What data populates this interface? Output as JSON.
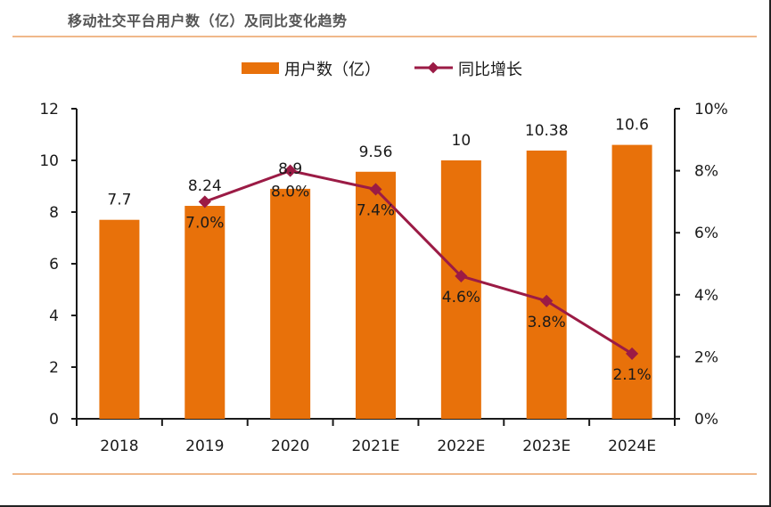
{
  "page": {
    "title": "移动社交平台用户数（亿）及同比变化趋势"
  },
  "colors": {
    "bar": "#e8710a",
    "line": "#9b1b45",
    "rule": "#f0b88a",
    "axis": "#1a1a1a"
  },
  "chart_data": {
    "type": "bar",
    "title": "移动社交平台用户数（亿）及同比变化趋势",
    "categories": [
      "2018",
      "2019",
      "2020",
      "2021E",
      "2022E",
      "2023E",
      "2024E"
    ],
    "series": [
      {
        "name": "用户数（亿）",
        "type": "bar",
        "axis": "left",
        "values": [
          7.7,
          8.24,
          8.9,
          9.56,
          10,
          10.38,
          10.6
        ],
        "labels": [
          "7.7",
          "8.24",
          "8.9",
          "9.56",
          "10",
          "10.38",
          "10.6"
        ]
      },
      {
        "name": "同比增长",
        "type": "line",
        "axis": "right",
        "marker": "diamond",
        "values": [
          null,
          7.0,
          8.0,
          7.4,
          4.6,
          3.8,
          2.1
        ],
        "labels": [
          "",
          "7.0%",
          "8.0%",
          "7.4%",
          "4.6%",
          "3.8%",
          "2.1%"
        ]
      }
    ],
    "xlabel": "",
    "ylabel": "",
    "ylim": [
      0,
      12
    ],
    "yticks": [
      "0",
      "2",
      "4",
      "6",
      "8",
      "10",
      "12"
    ],
    "y2lim": [
      0,
      10
    ],
    "y2ticks": [
      "0%",
      "2%",
      "4%",
      "6%",
      "8%",
      "10%"
    ],
    "grid": false,
    "legend": {
      "position": "top-center",
      "entries": [
        "用户数（亿）",
        "同比增长"
      ]
    }
  }
}
